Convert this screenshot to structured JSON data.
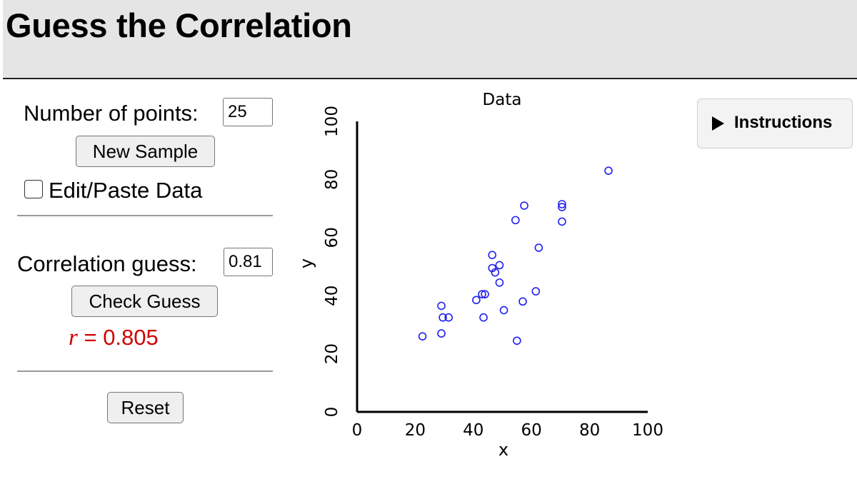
{
  "header": {
    "title": "Guess the Correlation"
  },
  "controls": {
    "num_points_label": "Number of points:",
    "num_points_value": "25",
    "new_sample_label": "New Sample",
    "edit_paste_label": "Edit/Paste Data",
    "edit_paste_checked": false,
    "guess_label": "Correlation guess:",
    "guess_value": "0.81",
    "check_guess_label": "Check Guess",
    "result_var": "r",
    "result_eq": " = ",
    "result_value": "0.805",
    "reset_label": "Reset"
  },
  "instructions": {
    "label": "Instructions"
  },
  "colors": {
    "result": "#d00000",
    "points": "#2020ee"
  },
  "chart_data": {
    "type": "scatter",
    "title": "Data",
    "xlabel": "x",
    "ylabel": "y",
    "xlim": [
      0,
      100
    ],
    "ylim": [
      0,
      100
    ],
    "xticks": [
      "0",
      "20",
      "40",
      "60",
      "80",
      "100"
    ],
    "yticks": [
      "0",
      "20",
      "40",
      "60",
      "80",
      "100"
    ],
    "grid": false,
    "points": [
      {
        "x": 22.5,
        "y": 26.0
      },
      {
        "x": 29.0,
        "y": 36.5
      },
      {
        "x": 29.5,
        "y": 32.5
      },
      {
        "x": 31.5,
        "y": 32.5
      },
      {
        "x": 29.0,
        "y": 27.0
      },
      {
        "x": 41.0,
        "y": 38.5
      },
      {
        "x": 43.0,
        "y": 40.5
      },
      {
        "x": 44.0,
        "y": 40.5
      },
      {
        "x": 43.5,
        "y": 32.5
      },
      {
        "x": 46.5,
        "y": 54.0
      },
      {
        "x": 46.5,
        "y": 49.5
      },
      {
        "x": 47.5,
        "y": 48.0
      },
      {
        "x": 49.0,
        "y": 50.5
      },
      {
        "x": 49.0,
        "y": 44.5
      },
      {
        "x": 50.5,
        "y": 35.0
      },
      {
        "x": 54.5,
        "y": 66.0
      },
      {
        "x": 55.0,
        "y": 24.5
      },
      {
        "x": 57.0,
        "y": 38.0
      },
      {
        "x": 57.5,
        "y": 71.0
      },
      {
        "x": 61.5,
        "y": 41.5
      },
      {
        "x": 62.5,
        "y": 56.5
      },
      {
        "x": 70.5,
        "y": 71.5
      },
      {
        "x": 70.5,
        "y": 70.5
      },
      {
        "x": 70.5,
        "y": 65.5
      },
      {
        "x": 86.5,
        "y": 83.0
      }
    ]
  }
}
